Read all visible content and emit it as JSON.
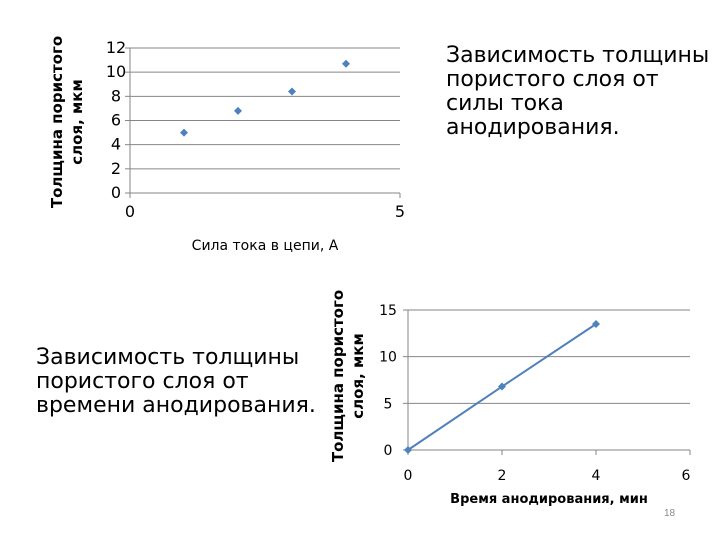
{
  "captions": {
    "top": "Зависимость толщины пористого слоя от силы тока анодирования.",
    "bottom": "Зависимость толщины пористого слоя от времени анодирования."
  },
  "page_number": "18",
  "colors": {
    "series": "#4f81bd",
    "axis": "#868686",
    "grid": "#868686",
    "text": "#000000"
  },
  "chart_data": [
    {
      "type": "scatter",
      "title": "",
      "xlabel": "Сила тока в цепи, А",
      "ylabel": [
        "Толщина пористого",
        "слоя, мкм"
      ],
      "xlim": [
        0,
        5
      ],
      "ylim": [
        0,
        12
      ],
      "xticks": [
        0,
        5
      ],
      "yticks": [
        0,
        2,
        4,
        6,
        8,
        10,
        12
      ],
      "grid": "horizontal",
      "legend": "none",
      "marker": "diamond",
      "series": [
        {
          "x": [
            1,
            2,
            3,
            4
          ],
          "y": [
            5,
            6.8,
            8.4,
            10.7
          ]
        }
      ]
    },
    {
      "type": "line",
      "title": "",
      "xlabel": "Время анодирования, мин",
      "ylabel": [
        "Толщина пористого",
        "слоя, мкм"
      ],
      "xlim": [
        0,
        6
      ],
      "ylim": [
        0,
        15
      ],
      "xticks": [
        0,
        2,
        4,
        6
      ],
      "yticks": [
        0,
        5,
        10,
        15
      ],
      "grid": "horizontal",
      "legend": "none",
      "marker": "diamond",
      "series": [
        {
          "x": [
            0,
            2,
            4
          ],
          "y": [
            0,
            6.8,
            13.5
          ]
        }
      ]
    }
  ]
}
